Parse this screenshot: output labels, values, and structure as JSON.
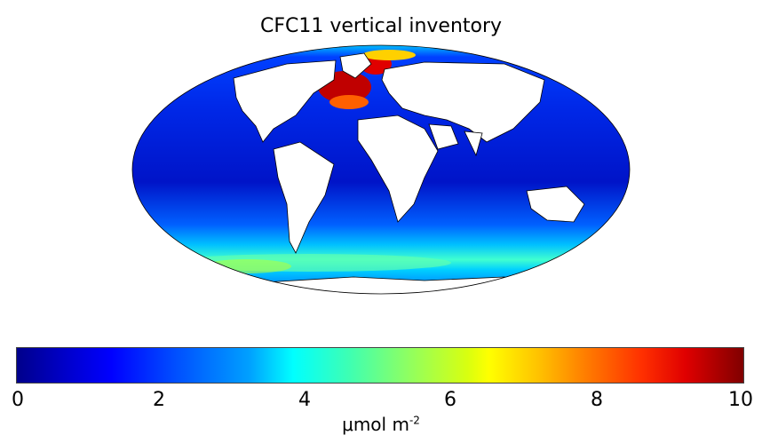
{
  "title": "CFC11 vertical inventory",
  "colorbar": {
    "ticks": [
      "0",
      "2",
      "4",
      "6",
      "8",
      "10"
    ],
    "unit_text": "μmol m",
    "unit_exponent": "-2",
    "range": [
      0,
      10
    ],
    "colormap": "jet"
  },
  "map": {
    "projection": "Mollweide",
    "land_color": "#ffffff",
    "coastline_color": "#000000"
  }
}
